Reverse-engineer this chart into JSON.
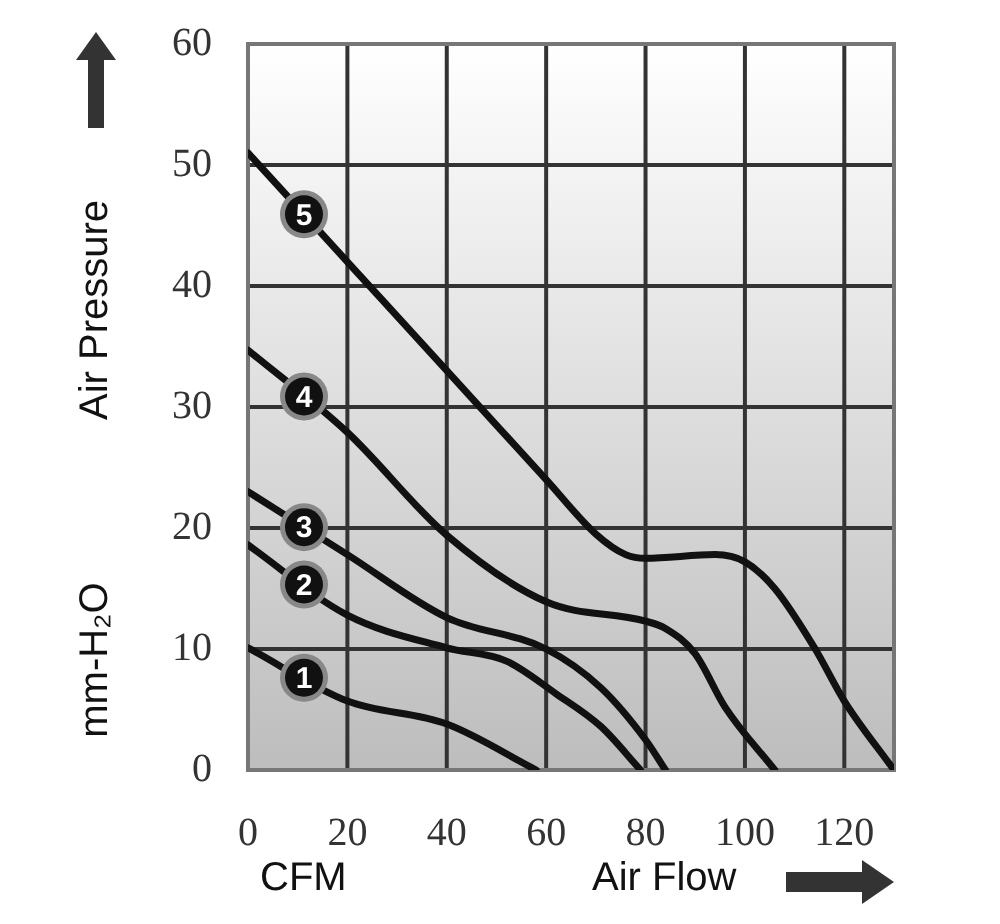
{
  "chart_data": {
    "type": "line",
    "ylabel": "Air Pressure",
    "xlabel": "Air Flow",
    "annotations": [
      "mm-H₂O",
      "CFM"
    ],
    "xlim": [
      0,
      130
    ],
    "xticks": [
      0,
      20,
      40,
      60,
      80,
      100,
      120
    ],
    "ylim": [
      0,
      60
    ],
    "yticks": [
      0,
      10,
      20,
      30,
      40,
      50,
      60
    ],
    "grid": true,
    "legend": "left",
    "marker": "none",
    "line_style": "solid",
    "series": [
      {
        "name": "1",
        "color": "#111111",
        "x": [
          0,
          20,
          40,
          58
        ],
        "values": [
          10.1,
          5.7,
          3.8,
          0
        ]
      },
      {
        "name": "2",
        "color": "#111111",
        "x": [
          0,
          20,
          40,
          52,
          62,
          71,
          79
        ],
        "values": [
          18.6,
          12.8,
          10.1,
          9,
          6.3,
          3.6,
          0
        ]
      },
      {
        "name": "3",
        "color": "#111111",
        "x": [
          0,
          20,
          40,
          60,
          71,
          80,
          84
        ],
        "values": [
          23,
          17.8,
          12.6,
          10,
          6.8,
          2.5,
          0
        ]
      },
      {
        "name": "4",
        "color": "#111111",
        "x": [
          0,
          20,
          40,
          60,
          80,
          84,
          90,
          96,
          106
        ],
        "values": [
          34.7,
          27.9,
          19.4,
          13.9,
          12.3,
          11.7,
          9.6,
          5.2,
          0
        ]
      },
      {
        "name": "5",
        "color": "#111111",
        "x": [
          0,
          20,
          40,
          60,
          70,
          76,
          80,
          94,
          100,
          106,
          114,
          120,
          130
        ],
        "values": [
          51,
          42,
          33,
          24,
          19.5,
          17.8,
          17.5,
          17.8,
          17.2,
          15,
          10.1,
          5.7,
          0
        ]
      }
    ]
  }
}
